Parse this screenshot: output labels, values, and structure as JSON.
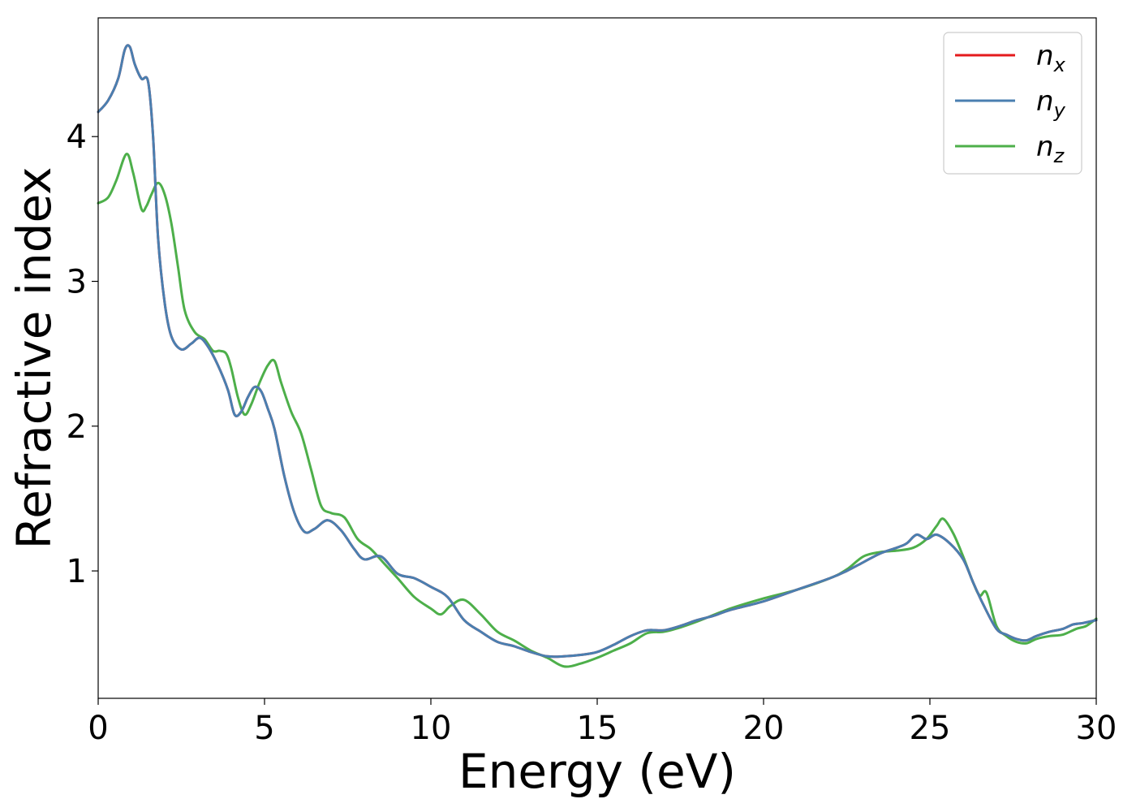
{
  "chart_data": {
    "type": "line",
    "title": "",
    "xlabel": "Energy (eV)",
    "ylabel": "Refractive index",
    "xlim": [
      0,
      30
    ],
    "ylim": [
      0.12,
      4.82
    ],
    "xticks": [
      0,
      5,
      10,
      15,
      20,
      25,
      30
    ],
    "xtick_labels": [
      "0",
      "5",
      "10",
      "15",
      "20",
      "25",
      "30"
    ],
    "yticks": [
      1,
      2,
      3,
      4
    ],
    "ytick_labels": [
      "1",
      "2",
      "3",
      "4"
    ],
    "grid": false,
    "legend_position": "top-right",
    "series": [
      {
        "name": "n",
        "subscript": "x",
        "color": "#e41a1c",
        "x": [
          0,
          0.3,
          0.6,
          0.8,
          0.95,
          1.1,
          1.3,
          1.5,
          1.65,
          1.8,
          2.0,
          2.2,
          2.5,
          2.8,
          3.05,
          3.3,
          3.6,
          3.9,
          4.1,
          4.3,
          4.5,
          4.7,
          4.9,
          5.1,
          5.3,
          5.6,
          5.9,
          6.2,
          6.5,
          6.9,
          7.3,
          7.7,
          8.0,
          8.5,
          9.0,
          9.5,
          10.0,
          10.5,
          11.0,
          11.5,
          12.0,
          12.5,
          13.0,
          13.5,
          14.0,
          14.5,
          15.0,
          15.5,
          16.0,
          16.5,
          17.0,
          17.5,
          18.0,
          18.5,
          19.0,
          20.0,
          21.0,
          22.0,
          22.5,
          23.0,
          23.5,
          24.0,
          24.3,
          24.6,
          24.9,
          25.2,
          25.6,
          26.0,
          26.3,
          26.6,
          27.0,
          27.3,
          27.6,
          27.9,
          28.2,
          28.6,
          29.0,
          29.3,
          29.6,
          30.0
        ],
        "values": [
          4.17,
          4.25,
          4.4,
          4.6,
          4.62,
          4.5,
          4.4,
          4.38,
          4.0,
          3.3,
          2.85,
          2.62,
          2.53,
          2.57,
          2.61,
          2.55,
          2.42,
          2.25,
          2.08,
          2.1,
          2.2,
          2.27,
          2.24,
          2.12,
          1.98,
          1.65,
          1.4,
          1.27,
          1.29,
          1.35,
          1.28,
          1.15,
          1.08,
          1.1,
          0.98,
          0.95,
          0.89,
          0.82,
          0.66,
          0.58,
          0.51,
          0.48,
          0.44,
          0.41,
          0.41,
          0.42,
          0.44,
          0.49,
          0.55,
          0.59,
          0.59,
          0.62,
          0.66,
          0.69,
          0.73,
          0.79,
          0.87,
          0.95,
          1.0,
          1.06,
          1.12,
          1.16,
          1.19,
          1.25,
          1.22,
          1.25,
          1.19,
          1.08,
          0.92,
          0.77,
          0.6,
          0.56,
          0.53,
          0.52,
          0.55,
          0.58,
          0.6,
          0.63,
          0.64,
          0.66
        ]
      },
      {
        "name": "n",
        "subscript": "y",
        "color": "#4a7fb0",
        "x": [
          0,
          0.3,
          0.6,
          0.8,
          0.95,
          1.1,
          1.3,
          1.5,
          1.65,
          1.8,
          2.0,
          2.2,
          2.5,
          2.8,
          3.05,
          3.3,
          3.6,
          3.9,
          4.1,
          4.3,
          4.5,
          4.7,
          4.9,
          5.1,
          5.3,
          5.6,
          5.9,
          6.2,
          6.5,
          6.9,
          7.3,
          7.7,
          8.0,
          8.5,
          9.0,
          9.5,
          10.0,
          10.5,
          11.0,
          11.5,
          12.0,
          12.5,
          13.0,
          13.5,
          14.0,
          14.5,
          15.0,
          15.5,
          16.0,
          16.5,
          17.0,
          17.5,
          18.0,
          18.5,
          19.0,
          20.0,
          21.0,
          22.0,
          22.5,
          23.0,
          23.5,
          24.0,
          24.3,
          24.6,
          24.9,
          25.2,
          25.6,
          26.0,
          26.3,
          26.6,
          27.0,
          27.3,
          27.6,
          27.9,
          28.2,
          28.6,
          29.0,
          29.3,
          29.6,
          30.0
        ],
        "values": [
          4.17,
          4.25,
          4.4,
          4.6,
          4.62,
          4.5,
          4.4,
          4.38,
          4.0,
          3.3,
          2.85,
          2.62,
          2.53,
          2.57,
          2.61,
          2.55,
          2.42,
          2.25,
          2.08,
          2.1,
          2.2,
          2.27,
          2.24,
          2.12,
          1.98,
          1.65,
          1.4,
          1.27,
          1.29,
          1.35,
          1.28,
          1.15,
          1.08,
          1.1,
          0.98,
          0.95,
          0.89,
          0.82,
          0.66,
          0.58,
          0.51,
          0.48,
          0.44,
          0.41,
          0.41,
          0.42,
          0.44,
          0.49,
          0.55,
          0.59,
          0.59,
          0.62,
          0.66,
          0.69,
          0.73,
          0.79,
          0.87,
          0.95,
          1.0,
          1.06,
          1.12,
          1.16,
          1.19,
          1.25,
          1.22,
          1.25,
          1.19,
          1.08,
          0.92,
          0.77,
          0.6,
          0.56,
          0.53,
          0.52,
          0.55,
          0.58,
          0.6,
          0.63,
          0.64,
          0.66
        ]
      },
      {
        "name": "n",
        "subscript": "z",
        "color": "#4daf4a",
        "x": [
          0,
          0.3,
          0.55,
          0.85,
          1.05,
          1.3,
          1.45,
          1.6,
          1.8,
          2.0,
          2.2,
          2.4,
          2.6,
          2.9,
          3.2,
          3.45,
          3.65,
          3.85,
          4.0,
          4.2,
          4.4,
          4.6,
          4.85,
          5.1,
          5.3,
          5.5,
          5.8,
          6.1,
          6.4,
          6.7,
          7.0,
          7.4,
          7.8,
          8.2,
          8.6,
          9.0,
          9.5,
          10.0,
          10.3,
          10.6,
          11.0,
          11.5,
          12.0,
          12.5,
          13.0,
          13.5,
          14.0,
          14.5,
          15.0,
          15.5,
          16.0,
          16.5,
          17.0,
          17.5,
          18.0,
          19.0,
          20.0,
          21.0,
          22.0,
          22.5,
          23.0,
          23.5,
          24.0,
          24.5,
          24.9,
          25.2,
          25.4,
          25.7,
          26.0,
          26.3,
          26.5,
          26.7,
          27.0,
          27.3,
          27.6,
          27.9,
          28.2,
          28.6,
          29.0,
          29.4,
          29.7,
          30.0
        ],
        "values": [
          3.54,
          3.58,
          3.7,
          3.88,
          3.75,
          3.5,
          3.52,
          3.6,
          3.68,
          3.6,
          3.4,
          3.1,
          2.8,
          2.65,
          2.6,
          2.52,
          2.52,
          2.5,
          2.4,
          2.2,
          2.08,
          2.15,
          2.3,
          2.42,
          2.45,
          2.3,
          2.1,
          1.95,
          1.7,
          1.45,
          1.4,
          1.37,
          1.22,
          1.15,
          1.05,
          0.95,
          0.82,
          0.74,
          0.7,
          0.76,
          0.8,
          0.7,
          0.58,
          0.52,
          0.45,
          0.4,
          0.34,
          0.36,
          0.4,
          0.45,
          0.5,
          0.57,
          0.58,
          0.61,
          0.65,
          0.74,
          0.81,
          0.87,
          0.95,
          1.01,
          1.1,
          1.13,
          1.14,
          1.16,
          1.22,
          1.31,
          1.36,
          1.26,
          1.1,
          0.92,
          0.83,
          0.85,
          0.62,
          0.55,
          0.51,
          0.5,
          0.53,
          0.55,
          0.56,
          0.6,
          0.62,
          0.67
        ]
      }
    ]
  }
}
